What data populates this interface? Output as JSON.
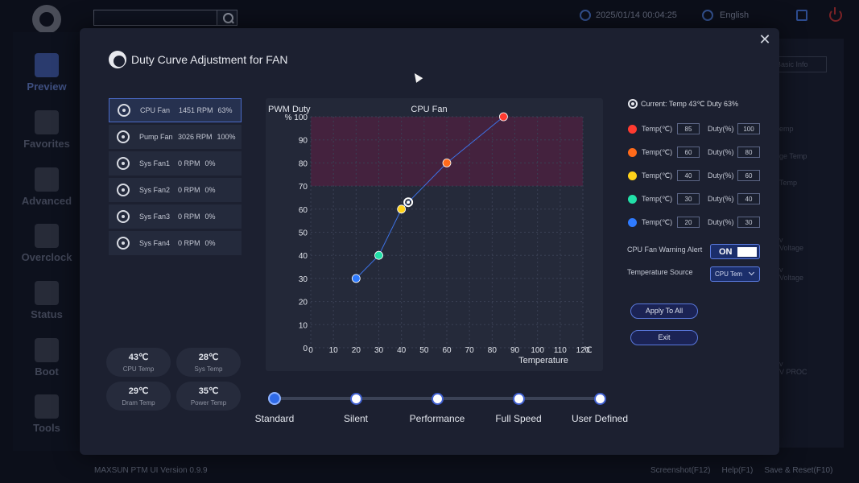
{
  "topbar": {
    "datetime": "2025/01/14 00:04:25",
    "language": "English"
  },
  "sidebar": {
    "items": [
      {
        "label": "Preview",
        "icon": "preview-icon",
        "active": true
      },
      {
        "label": "Favorites",
        "icon": "star-icon"
      },
      {
        "label": "Advanced",
        "icon": "wrench-icon"
      },
      {
        "label": "Overclock",
        "icon": "rocket-icon"
      },
      {
        "label": "Status",
        "icon": "eye-icon"
      },
      {
        "label": "Boot",
        "icon": "ssd-icon"
      },
      {
        "label": "Tools",
        "icon": "hammer-icon"
      }
    ]
  },
  "background": {
    "basic_info_tab": "Basic Info",
    "fragments": [
      "emp",
      "ge Temp",
      "Temp",
      "v",
      "Voltage",
      "v",
      "Voltage",
      "v",
      "V PROC"
    ]
  },
  "footer": {
    "version": "MAXSUN PTM UI Version 0.9.9",
    "links": [
      "Screenshot(F12)",
      "Help(F1)",
      "Save & Reset(F10)"
    ]
  },
  "modal": {
    "title": "Duty Curve Adjustment for FAN",
    "close_symbol": "✕",
    "fans": [
      {
        "name": "CPU Fan",
        "rpm": "1451 RPM",
        "pct": "63%",
        "active": true
      },
      {
        "name": "Pump Fan",
        "rpm": "3026 RPM",
        "pct": "100%"
      },
      {
        "name": "Sys Fan1",
        "rpm": "0 RPM",
        "pct": "0%"
      },
      {
        "name": "Sys Fan2",
        "rpm": "0 RPM",
        "pct": "0%"
      },
      {
        "name": "Sys Fan3",
        "rpm": "0 RPM",
        "pct": "0%"
      },
      {
        "name": "Sys Fan4",
        "rpm": "0 RPM",
        "pct": "0%"
      }
    ],
    "temps": [
      {
        "value": "43℃",
        "label": "CPU Temp"
      },
      {
        "value": "28℃",
        "label": "Sys Temp"
      },
      {
        "value": "29℃",
        "label": "Dram Temp"
      },
      {
        "value": "35℃",
        "label": "Power Temp"
      }
    ],
    "current": "Current: Temp 43℃  Duty 63%",
    "points": [
      {
        "temp_label": "Temp(℃)",
        "temp": "85",
        "duty_label": "Duty(%)",
        "duty": "100",
        "color": "#ff3b30"
      },
      {
        "temp_label": "Temp(℃)",
        "temp": "60",
        "duty_label": "Duty(%)",
        "duty": "80",
        "color": "#ff6a1a"
      },
      {
        "temp_label": "Temp(℃)",
        "temp": "40",
        "duty_label": "Duty(%)",
        "duty": "60",
        "color": "#ffd21a"
      },
      {
        "temp_label": "Temp(℃)",
        "temp": "30",
        "duty_label": "Duty(%)",
        "duty": "40",
        "color": "#22e0a8"
      },
      {
        "temp_label": "Temp(℃)",
        "temp": "20",
        "duty_label": "Duty(%)",
        "duty": "30",
        "color": "#2f7bff"
      }
    ],
    "warning_label": "CPU Fan Warning Alert",
    "warning_state": "ON",
    "source_label": "Temperature Source",
    "source_value": "CPU Tem",
    "apply_label": "Apply To All",
    "exit_label": "Exit",
    "presets": [
      "Standard",
      "Silent",
      "Performance",
      "Full Speed",
      "User Defined"
    ],
    "active_preset": 0
  },
  "chart_data": {
    "type": "line",
    "title": "CPU Fan",
    "ylabel": "PWM Duty",
    "y_unit_label": "%",
    "xlabel": "Temperature",
    "x_unit_label": "℃",
    "xlim": [
      0,
      120
    ],
    "ylim": [
      0,
      100
    ],
    "x_ticks": [
      0,
      10,
      20,
      30,
      40,
      50,
      60,
      70,
      80,
      90,
      100,
      110,
      120
    ],
    "y_ticks": [
      0,
      10,
      20,
      30,
      40,
      50,
      60,
      70,
      80,
      90,
      100
    ],
    "highlight_band": [
      70,
      100
    ],
    "grid": true,
    "series": [
      {
        "x": [
          20,
          30,
          40,
          60,
          85
        ],
        "y": [
          30,
          40,
          60,
          80,
          100
        ],
        "colors": [
          "#2f7bff",
          "#22e0a8",
          "#ffd21a",
          "#ff6a1a",
          "#ff3b30"
        ]
      }
    ],
    "current_marker": {
      "x": 43,
      "y": 63
    }
  }
}
